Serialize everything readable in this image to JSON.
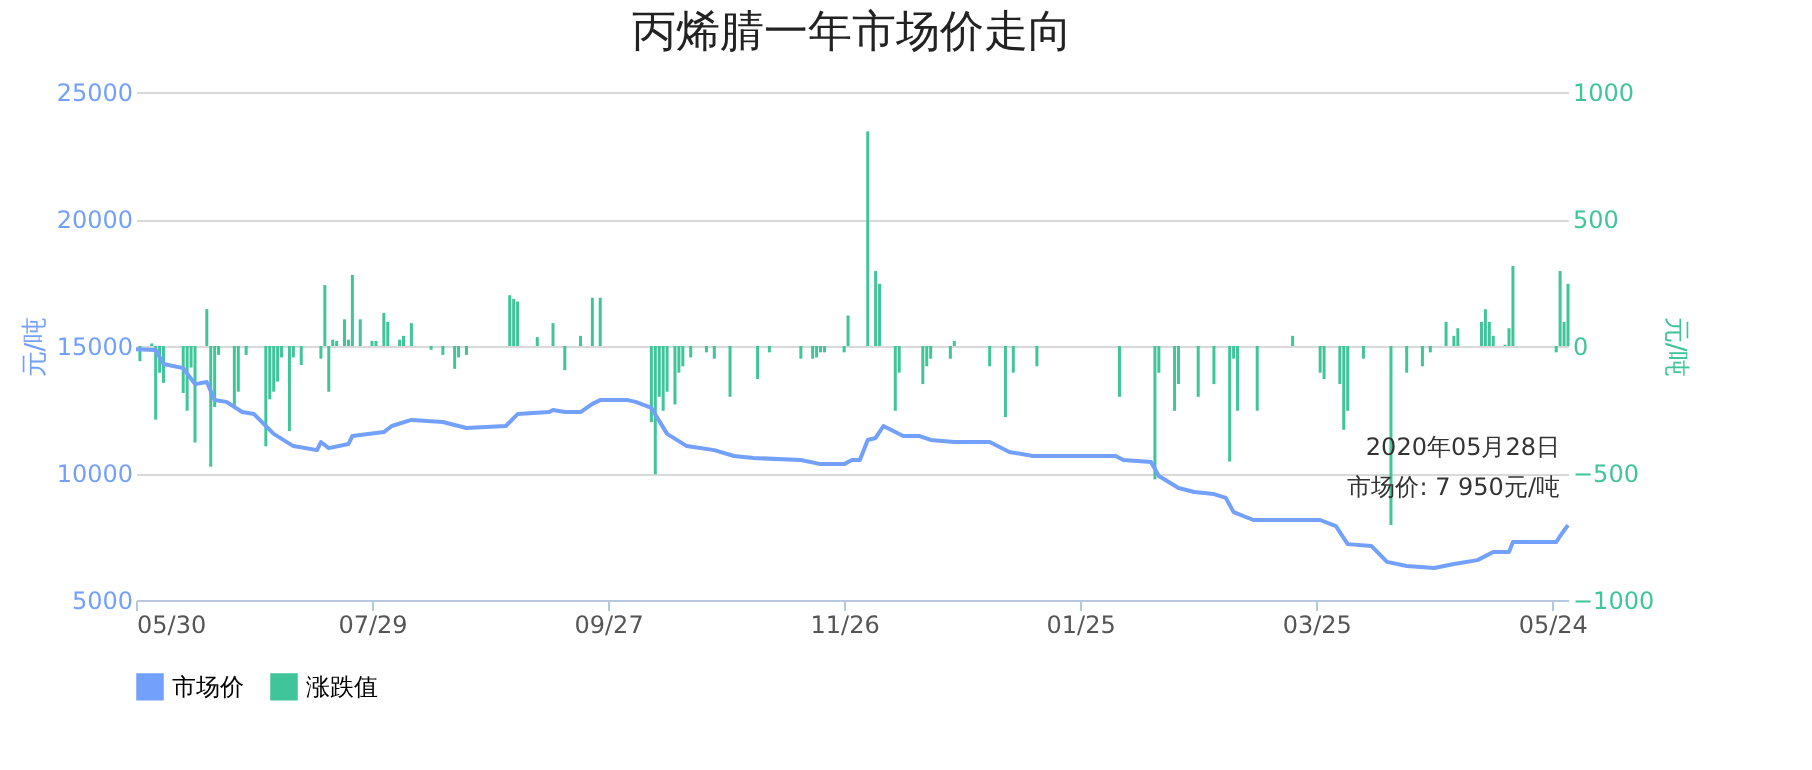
{
  "chart_data": {
    "type": "line",
    "title": "丙烯腈一年市场价走向",
    "ylabel": "元/吨",
    "y2label": "元/吨",
    "xlim": [
      "2019-05-30",
      "2020-05-28"
    ],
    "xticks": [
      {
        "value": "2019-05-30",
        "label": "05/30"
      },
      {
        "value": "2019-07-29",
        "label": "07/29"
      },
      {
        "value": "2019-09-27",
        "label": "09/27"
      },
      {
        "value": "2019-11-26",
        "label": "11/26"
      },
      {
        "value": "2020-01-25",
        "label": "01/25"
      },
      {
        "value": "2020-03-25",
        "label": "03/25"
      },
      {
        "value": "2020-05-24",
        "label": "05/24"
      }
    ],
    "ylim": [
      5000,
      25000
    ],
    "yticks": [
      5000,
      10000,
      15000,
      20000,
      25000
    ],
    "y2lim": [
      -1000,
      1000
    ],
    "y2ticks": [
      -1000,
      -500,
      0,
      500,
      1000
    ],
    "grid": "y",
    "legend": "bottom",
    "marker": "none",
    "line_style": "solid",
    "annotations": [
      "2020年05月28日",
      {
        "text": "市场价: 7 950元/吨",
        "x": "2020-05-28",
        "y": 7950
      }
    ],
    "series": [
      {
        "name": "市场价",
        "color": "#73a0fa",
        "x": [
          "2019-05-30",
          "2019-06-04",
          "2019-06-06",
          "2019-06-11",
          "2019-06-14",
          "2019-06-17",
          "2019-06-19",
          "2019-06-22",
          "2019-06-26",
          "2019-06-29",
          "2019-07-04",
          "2019-07-09",
          "2019-07-15",
          "2019-07-16",
          "2019-07-18",
          "2019-07-23",
          "2019-07-24",
          "2019-08-01",
          "2019-08-03",
          "2019-08-08",
          "2019-08-16",
          "2019-08-22",
          "2019-09-01",
          "2019-09-04",
          "2019-09-12",
          "2019-09-13",
          "2019-09-16",
          "2019-09-20",
          "2019-09-23",
          "2019-09-25",
          "2019-10-02",
          "2019-10-04",
          "2019-10-08",
          "2019-10-12",
          "2019-10-17",
          "2019-10-24",
          "2019-10-29",
          "2019-11-03",
          "2019-11-15",
          "2019-11-20",
          "2019-11-26",
          "2019-11-28",
          "2019-11-30",
          "2019-12-02",
          "2019-12-04",
          "2019-12-06",
          "2019-12-11",
          "2019-12-15",
          "2019-12-18",
          "2019-12-24",
          "2020-01-02",
          "2020-01-07",
          "2020-01-13",
          "2020-01-27",
          "2020-02-03",
          "2020-02-05",
          "2020-02-12",
          "2020-02-14",
          "2020-02-19",
          "2020-02-23",
          "2020-02-28",
          "2020-03-02",
          "2020-03-04",
          "2020-03-09",
          "2020-03-16",
          "2020-03-26",
          "2020-03-30",
          "2020-04-02",
          "2020-04-08",
          "2020-04-12",
          "2020-04-17",
          "2020-04-24",
          "2020-04-29",
          "2020-05-05",
          "2020-05-09",
          "2020-05-13",
          "2020-05-14",
          "2020-05-25",
          "2020-05-26",
          "2020-05-28"
        ],
        "values": [
          14870,
          14840,
          14290,
          14130,
          13500,
          13580,
          12870,
          12800,
          12400,
          12320,
          11540,
          11060,
          10900,
          11220,
          10980,
          11140,
          11460,
          11610,
          11850,
          12090,
          12010,
          11770,
          11850,
          12320,
          12400,
          12480,
          12400,
          12400,
          12720,
          12870,
          12870,
          12800,
          12560,
          11540,
          11060,
          10900,
          10670,
          10590,
          10510,
          10350,
          10350,
          10510,
          10510,
          11300,
          11380,
          11850,
          11460,
          11460,
          11300,
          11220,
          11220,
          10830,
          10670,
          10670,
          10670,
          10510,
          10430,
          9880,
          9410,
          9250,
          9170,
          9020,
          8460,
          8150,
          8150,
          8150,
          7910,
          7200,
          7130,
          6500,
          6340,
          6260,
          6420,
          6570,
          6890,
          6890,
          7280,
          7280,
          7520,
          7950
        ]
      },
      {
        "name": "涨跌值",
        "type": "bar",
        "axis": "y2",
        "color": "#40c59a",
        "x": [
          "2019-05-31",
          "2019-06-03",
          "2019-06-04",
          "2019-06-05",
          "2019-06-06",
          "2019-06-11",
          "2019-06-12",
          "2019-06-13",
          "2019-06-14",
          "2019-06-17",
          "2019-06-18",
          "2019-06-19",
          "2019-06-20",
          "2019-06-24",
          "2019-06-25",
          "2019-06-27",
          "2019-07-02",
          "2019-07-03",
          "2019-07-04",
          "2019-07-05",
          "2019-07-06",
          "2019-07-08",
          "2019-07-09",
          "2019-07-11",
          "2019-07-16",
          "2019-07-17",
          "2019-07-18",
          "2019-07-19",
          "2019-07-20",
          "2019-07-22",
          "2019-07-23",
          "2019-07-24",
          "2019-07-26",
          "2019-07-29",
          "2019-07-30",
          "2019-08-01",
          "2019-08-02",
          "2019-08-05",
          "2019-08-06",
          "2019-08-08",
          "2019-08-13",
          "2019-08-16",
          "2019-08-19",
          "2019-08-20",
          "2019-08-22",
          "2019-09-02",
          "2019-09-03",
          "2019-09-04",
          "2019-09-09",
          "2019-09-13",
          "2019-09-16",
          "2019-09-20",
          "2019-09-23",
          "2019-09-25",
          "2019-10-08",
          "2019-10-09",
          "2019-10-10",
          "2019-10-11",
          "2019-10-12",
          "2019-10-14",
          "2019-10-15",
          "2019-10-16",
          "2019-10-18",
          "2019-10-22",
          "2019-10-24",
          "2019-10-28",
          "2019-11-04",
          "2019-11-07",
          "2019-11-15",
          "2019-11-18",
          "2019-11-19",
          "2019-11-20",
          "2019-11-21",
          "2019-11-26",
          "2019-11-27",
          "2019-12-02",
          "2019-12-04",
          "2019-12-05",
          "2019-12-09",
          "2019-12-10",
          "2019-12-16",
          "2019-12-17",
          "2019-12-18",
          "2019-12-23",
          "2019-12-24",
          "2020-01-02",
          "2020-01-06",
          "2020-01-08",
          "2020-01-14",
          "2020-02-04",
          "2020-02-13",
          "2020-02-14",
          "2020-02-18",
          "2020-02-19",
          "2020-02-24",
          "2020-02-28",
          "2020-03-03",
          "2020-03-04",
          "2020-03-05",
          "2020-03-10",
          "2020-03-19",
          "2020-03-26",
          "2020-03-27",
          "2020-03-31",
          "2020-04-01",
          "2020-04-02",
          "2020-04-06",
          "2020-04-13",
          "2020-04-17",
          "2020-04-21",
          "2020-04-23",
          "2020-04-27",
          "2020-04-29",
          "2020-04-30",
          "2020-05-06",
          "2020-05-07",
          "2020-05-08",
          "2020-05-09",
          "2020-05-12",
          "2020-05-13",
          "2020-05-14",
          "2020-05-25",
          "2020-05-26",
          "2020-05-27",
          "2020-05-28"
        ],
        "values": [
          -60,
          10,
          -290,
          -105,
          -145,
          -185,
          -255,
          -85,
          -380,
          145,
          -475,
          -240,
          -35,
          -245,
          -180,
          -35,
          -395,
          -210,
          -180,
          -140,
          -45,
          -335,
          -45,
          -75,
          -50,
          240,
          -180,
          25,
          20,
          105,
          25,
          280,
          105,
          20,
          20,
          130,
          95,
          25,
          40,
          90,
          -15,
          -35,
          -90,
          -45,
          -35,
          200,
          185,
          175,
          35,
          90,
          -95,
          40,
          190,
          190,
          -300,
          -505,
          -200,
          -255,
          -180,
          -230,
          -105,
          -80,
          -45,
          -25,
          -50,
          -200,
          -130,
          -25,
          -50,
          -50,
          -45,
          -25,
          -25,
          -25,
          120,
          845,
          295,
          245,
          -255,
          -105,
          -150,
          -80,
          -50,
          -50,
          20,
          -80,
          -280,
          -105,
          -80,
          -200,
          -525,
          -105,
          -255,
          -150,
          -200,
          -150,
          -455,
          -50,
          -255,
          -255,
          40,
          -105,
          -130,
          -150,
          -330,
          -255,
          -50,
          -705,
          -105,
          -80,
          -25,
          95,
          40,
          70,
          95,
          145,
          95,
          40,
          5,
          70,
          315,
          -25,
          295,
          95,
          245
        ]
      }
    ]
  }
}
